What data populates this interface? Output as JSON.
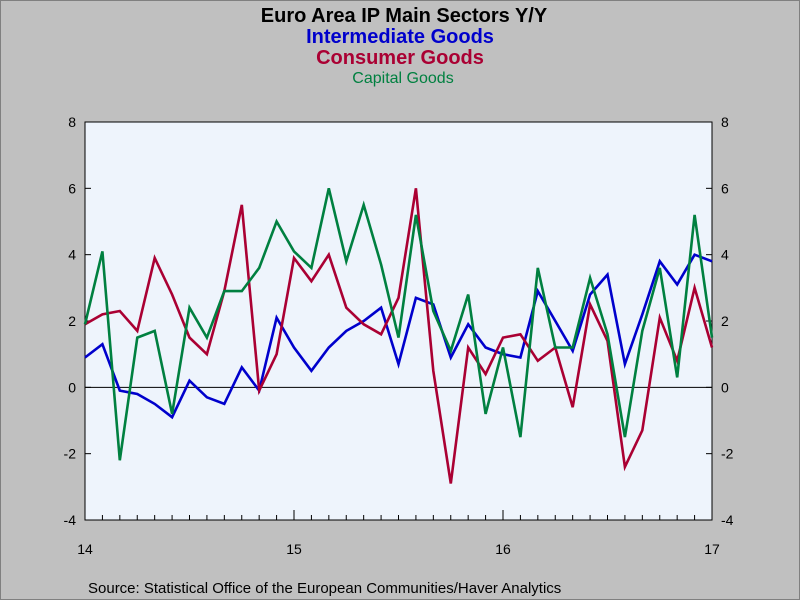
{
  "chart_data": {
    "type": "line",
    "title": "Euro Area IP Main Sectors Y/Y",
    "source": "Source:  Statistical Office of the European Communities/Haver Analytics",
    "ylim": [
      -4,
      8
    ],
    "yticks": [
      -4,
      -2,
      0,
      2,
      4,
      6,
      8
    ],
    "x_tick_labels": [
      "14",
      "15",
      "16",
      "17"
    ],
    "x_start": "2014-01",
    "months": 37,
    "grid": false,
    "zero_line": true,
    "series": [
      {
        "name": "Intermediate Goods",
        "color": "#0000cc",
        "values": [
          0.9,
          1.3,
          -0.1,
          -0.2,
          -0.5,
          -0.9,
          0.2,
          -0.3,
          -0.5,
          0.6,
          -0.1,
          2.1,
          1.2,
          0.5,
          1.2,
          1.7,
          2.0,
          2.4,
          0.7,
          2.7,
          2.5,
          0.9,
          1.9,
          1.2,
          1.0,
          0.9,
          2.9,
          2.0,
          1.1,
          2.8,
          3.4,
          0.7,
          2.2,
          3.8,
          3.1,
          4.0,
          3.8
        ]
      },
      {
        "name": "Consumer Goods",
        "color": "#aa0033",
        "values": [
          1.9,
          2.2,
          2.3,
          1.7,
          3.9,
          2.8,
          1.5,
          1.0,
          2.9,
          5.5,
          -0.1,
          1.0,
          3.9,
          3.2,
          4.0,
          2.4,
          1.9,
          1.6,
          2.7,
          6.0,
          0.5,
          -2.9,
          1.2,
          0.4,
          1.5,
          1.6,
          0.8,
          1.2,
          -0.6,
          2.5,
          1.4,
          -2.4,
          -1.3,
          2.1,
          0.8,
          3.0,
          1.2
        ]
      },
      {
        "name": "Capital Goods",
        "color": "#008040",
        "values": [
          1.9,
          4.1,
          -2.2,
          1.5,
          1.7,
          -0.8,
          2.4,
          1.5,
          2.9,
          2.9,
          3.6,
          5.0,
          4.1,
          3.6,
          6.0,
          3.8,
          5.5,
          3.7,
          1.5,
          5.2,
          2.3,
          1.1,
          2.8,
          -0.8,
          1.2,
          -1.5,
          3.6,
          1.2,
          1.2,
          3.3,
          1.6,
          -1.5,
          1.7,
          3.6,
          0.3,
          5.2,
          1.5
        ]
      }
    ]
  }
}
